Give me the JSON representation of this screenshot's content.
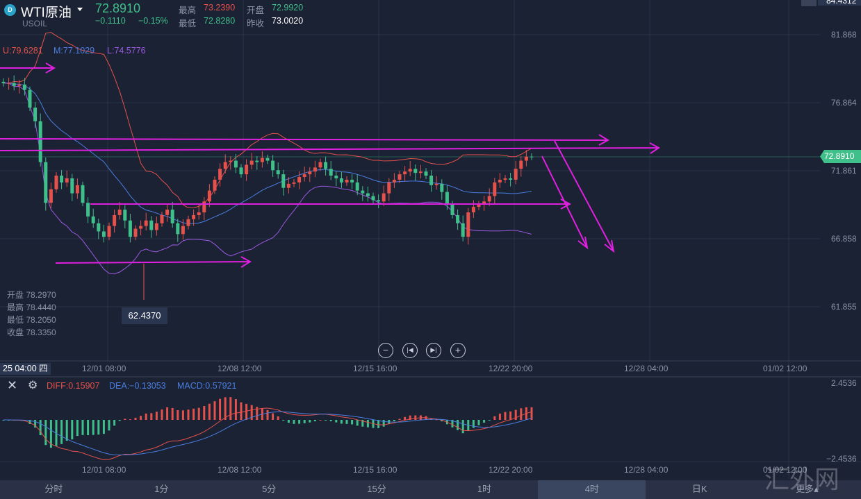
{
  "header": {
    "logo_letter": "D",
    "title": "WTI原油",
    "symbol": "USOIL",
    "price": "72.8910",
    "change": "−0.1110",
    "change_pct": "−0.15%",
    "high_label": "最高",
    "high": "73.2390",
    "open_label": "开盘",
    "open": "72.9920",
    "low_label": "最低",
    "low": "72.8280",
    "prev_label": "昨收",
    "prev": "73.0020",
    "top_right_price": "84.4312"
  },
  "boll": {
    "u": "U:79.6281",
    "m": "M:77.1029",
    "l": "L:74.5776"
  },
  "price_axis": [
    "81.868",
    "76.864",
    "71.861",
    "66.858",
    "61.855"
  ],
  "current_price_label": "72.8910",
  "crosshair_ohlc": {
    "open": "开盘 78.2970",
    "high": "最高 78.4440",
    "low": "最低 78.2050",
    "close": "收盘 78.3350"
  },
  "low_marker": "62.4370",
  "time_axis": {
    "cursor": "25 04:00 四",
    "labels": [
      "12/01 08:00",
      "12/08 12:00",
      "12/15 16:00",
      "12/22 20:00",
      "12/28 04:00",
      "01/02 12:00"
    ]
  },
  "macd": {
    "diff": "DIFF:0.15907",
    "dea": "DEA:−0.13053",
    "macd": "MACD:0.57921",
    "axis_top": "2.4536",
    "axis_bottom": "−2.4536"
  },
  "tabs": [
    "分时",
    "1分",
    "5分",
    "15分",
    "1时",
    "4时",
    "日K",
    "更多▴"
  ],
  "active_tab": "4时",
  "watermark": "汇外网",
  "colors": {
    "up": "#e5514b",
    "down": "#3fbf8a",
    "mid": "#4a7ee0",
    "lower": "#9b59e0",
    "drawing": "#e020e0"
  },
  "chart_data": {
    "type": "candlestick",
    "title": "WTI原油 4H",
    "ylim": [
      60,
      84
    ],
    "closes": [
      78.3,
      78.3,
      78.1,
      78.2,
      77.8,
      76.5,
      75.5,
      72.5,
      69.5,
      70.5,
      71.5,
      71.0,
      71.3,
      70.2,
      70.8,
      69.5,
      68.5,
      68.0,
      67.4,
      67.0,
      67.8,
      68.6,
      69.0,
      68.2,
      67.0,
      67.6,
      67.8,
      68.2,
      67.5,
      68.0,
      68.6,
      69.0,
      68.0,
      67.2,
      67.8,
      68.3,
      68.6,
      68.8,
      69.6,
      70.4,
      71.2,
      72.0,
      72.5,
      72.6,
      72.1,
      71.6,
      72.3,
      72.6,
      72.5,
      72.8,
      72.6,
      71.9,
      71.6,
      70.6,
      70.9,
      71.0,
      71.4,
      71.6,
      71.8,
      72.1,
      72.5,
      72.0,
      71.5,
      71.3,
      71.0,
      71.2,
      71.0,
      70.4,
      70.2,
      70.0,
      69.7,
      69.6,
      70.2,
      71.0,
      71.2,
      71.6,
      71.8,
      72.0,
      71.7,
      71.8,
      71.5,
      70.8,
      70.9,
      70.3,
      69.4,
      68.6,
      68.0,
      67.0,
      68.8,
      69.2,
      69.4,
      69.6,
      70.0,
      71.0,
      71.2,
      71.3,
      71.2,
      72.0,
      72.6,
      72.9,
      72.89
    ]
  }
}
